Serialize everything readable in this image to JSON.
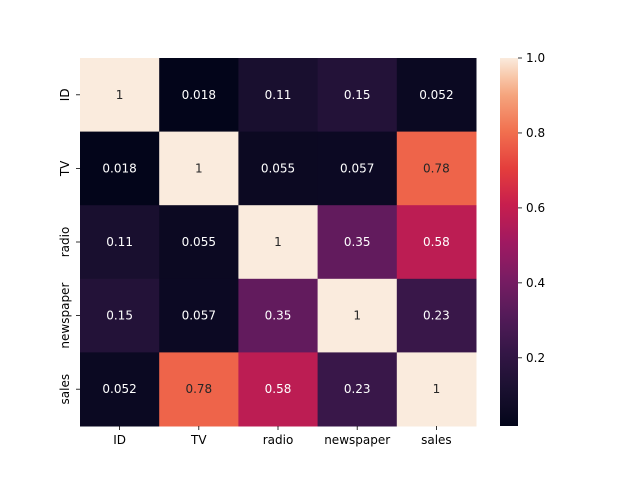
{
  "chart_data": {
    "type": "heatmap",
    "title": "",
    "xlabel": "",
    "ylabel": "",
    "x_categories": [
      "ID",
      "TV",
      "radio",
      "newspaper",
      "sales"
    ],
    "y_categories": [
      "ID",
      "TV",
      "radio",
      "newspaper",
      "sales"
    ],
    "values": [
      [
        1,
        0.018,
        0.11,
        0.15,
        0.052
      ],
      [
        0.018,
        1,
        0.055,
        0.057,
        0.78
      ],
      [
        0.11,
        0.055,
        1,
        0.35,
        0.58
      ],
      [
        0.15,
        0.057,
        0.35,
        1,
        0.23
      ],
      [
        0.052,
        0.78,
        0.58,
        0.23,
        1
      ]
    ],
    "value_labels": [
      [
        "1",
        "0.018",
        "0.11",
        "0.15",
        "0.052"
      ],
      [
        "0.018",
        "1",
        "0.055",
        "0.057",
        "0.78"
      ],
      [
        "0.11",
        "0.055",
        "1",
        "0.35",
        "0.58"
      ],
      [
        "0.15",
        "0.057",
        "0.35",
        "1",
        "0.23"
      ],
      [
        "0.052",
        "0.78",
        "0.58",
        "0.23",
        "1"
      ]
    ],
    "colormap": "rocket",
    "colorbar": {
      "range": [
        0.018,
        1.0
      ],
      "ticks": [
        0.2,
        0.4,
        0.6,
        0.8,
        1.0
      ],
      "tick_labels": [
        "0.2",
        "0.4",
        "0.6",
        "0.8",
        "1.0"
      ]
    }
  }
}
